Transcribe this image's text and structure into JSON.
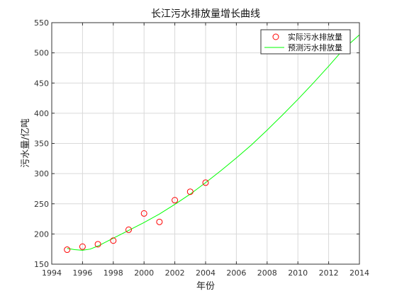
{
  "chart_data": {
    "type": "scatter",
    "title": "长江污水排放量增长曲线",
    "xlabel": "年份",
    "ylabel": "污水量/亿吨",
    "xlim": [
      1994,
      2014
    ],
    "ylim": [
      150,
      550
    ],
    "xticks": [
      1994,
      1996,
      1998,
      2000,
      2002,
      2004,
      2006,
      2008,
      2010,
      2012,
      2014
    ],
    "yticks": [
      150,
      200,
      250,
      300,
      350,
      400,
      450,
      500,
      550
    ],
    "grid": true,
    "legend_position": "top-right",
    "series": [
      {
        "name": "实际污水排放量",
        "kind": "marker",
        "marker": "circle",
        "color": "#ff0000",
        "x": [
          1995,
          1996,
          1997,
          1998,
          1999,
          2000,
          2001,
          2002,
          2003,
          2004
        ],
        "y": [
          174,
          179,
          183,
          189,
          207,
          234,
          220,
          256,
          270,
          285
        ]
      },
      {
        "name": "预测污水排放量",
        "kind": "line",
        "color": "#00ff00",
        "x": [
          1995,
          1995.5,
          1996,
          1996.5,
          1997,
          1998,
          1999,
          2000,
          2001,
          2002,
          2003,
          2004,
          2005,
          2006,
          2007,
          2008,
          2009,
          2010,
          2011,
          2012,
          2013,
          2014
        ],
        "y": [
          176,
          174,
          173,
          175,
          180,
          193,
          206,
          219,
          233,
          249,
          266,
          285,
          305,
          326,
          348,
          372,
          397,
          423,
          450,
          478,
          507,
          530
        ]
      }
    ]
  }
}
